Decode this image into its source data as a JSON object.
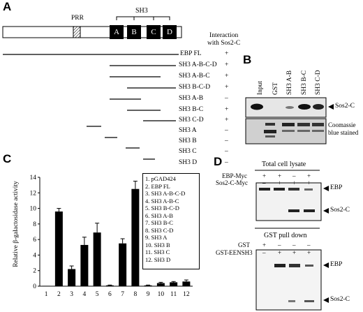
{
  "panelA": {
    "letter": "A",
    "prr": "PRR",
    "sh3": "SH3",
    "domains": [
      "A",
      "B",
      "C",
      "D"
    ],
    "interaction_header_line1": "Interaction",
    "interaction_header_line2": "with Sos2-C",
    "constructs": [
      {
        "label": "EBP FL",
        "result": "+"
      },
      {
        "label": "SH3 A-B-C-D",
        "result": "+"
      },
      {
        "label": "SH3 A-B-C",
        "result": "+"
      },
      {
        "label": "SH3 B-C-D",
        "result": "+"
      },
      {
        "label": "SH3 A-B",
        "result": "–"
      },
      {
        "label": "SH3 B-C",
        "result": "+"
      },
      {
        "label": "SH3 C-D",
        "result": "+"
      },
      {
        "label": "SH3 A",
        "result": "–"
      },
      {
        "label": "SH3 B",
        "result": "–"
      },
      {
        "label": "SH3 C",
        "result": "–"
      },
      {
        "label": "SH3 D",
        "result": "–"
      }
    ]
  },
  "panelB": {
    "letter": "B",
    "lanes": [
      "Input",
      "GST",
      "SH3 A-B",
      "SH3 B-C",
      "SH3 C-D"
    ],
    "band_label": "Sos2-C",
    "coomassie_line1": "Coomassie",
    "coomassie_line2": "blue stained"
  },
  "panelC": {
    "letter": "C",
    "legend": [
      "1. pGAD424",
      "2. EBP FL",
      "3. SH3 A-B-C-D",
      "4. SH3 A-B-C",
      "5. SH3 B-C-D",
      "6. SH3 A-B",
      "7. SH3 B-C",
      "8. SH3 C-D",
      "9. SH3 A",
      "10. SH3 B",
      "11. SH3 C",
      "12. SH3 D"
    ]
  },
  "chart_data": {
    "type": "bar",
    "ylabel": "Relative β-galactosidase activity",
    "categories": [
      "1",
      "2",
      "3",
      "4",
      "5",
      "6",
      "7",
      "8",
      "9",
      "10",
      "11",
      "12"
    ],
    "values": [
      0.05,
      9.6,
      2.2,
      5.3,
      6.9,
      0.1,
      5.5,
      12.5,
      0.1,
      0.4,
      0.5,
      0.6
    ],
    "errors": [
      0,
      0.4,
      0.4,
      1.0,
      1.2,
      0.05,
      0.6,
      1.0,
      0.05,
      0.1,
      0.1,
      0.2
    ],
    "yticks": [
      0,
      2,
      4,
      6,
      8,
      10,
      12,
      14
    ],
    "ylim": [
      0,
      14
    ]
  },
  "panelD": {
    "letter": "D",
    "top_title": "Total cell lysate",
    "row1_label": "EBP-Myc",
    "row1_signs": [
      "+",
      "+",
      "–",
      "+"
    ],
    "row2_label": "Sos2-C-Myc",
    "row2_signs": [
      "–",
      "+",
      "+",
      "+"
    ],
    "top_band1": "EBP",
    "top_band2": "Sos2-C",
    "bottom_title": "GST pull down",
    "row3_label": "GST",
    "row3_signs": [
      "+",
      "–",
      "–",
      "–"
    ],
    "row4_label": "GST-EENSH3",
    "row4_signs": [
      "–",
      "+",
      "+",
      "+"
    ],
    "bottom_band1": "EBP",
    "bottom_band2": "Sos2-C"
  }
}
